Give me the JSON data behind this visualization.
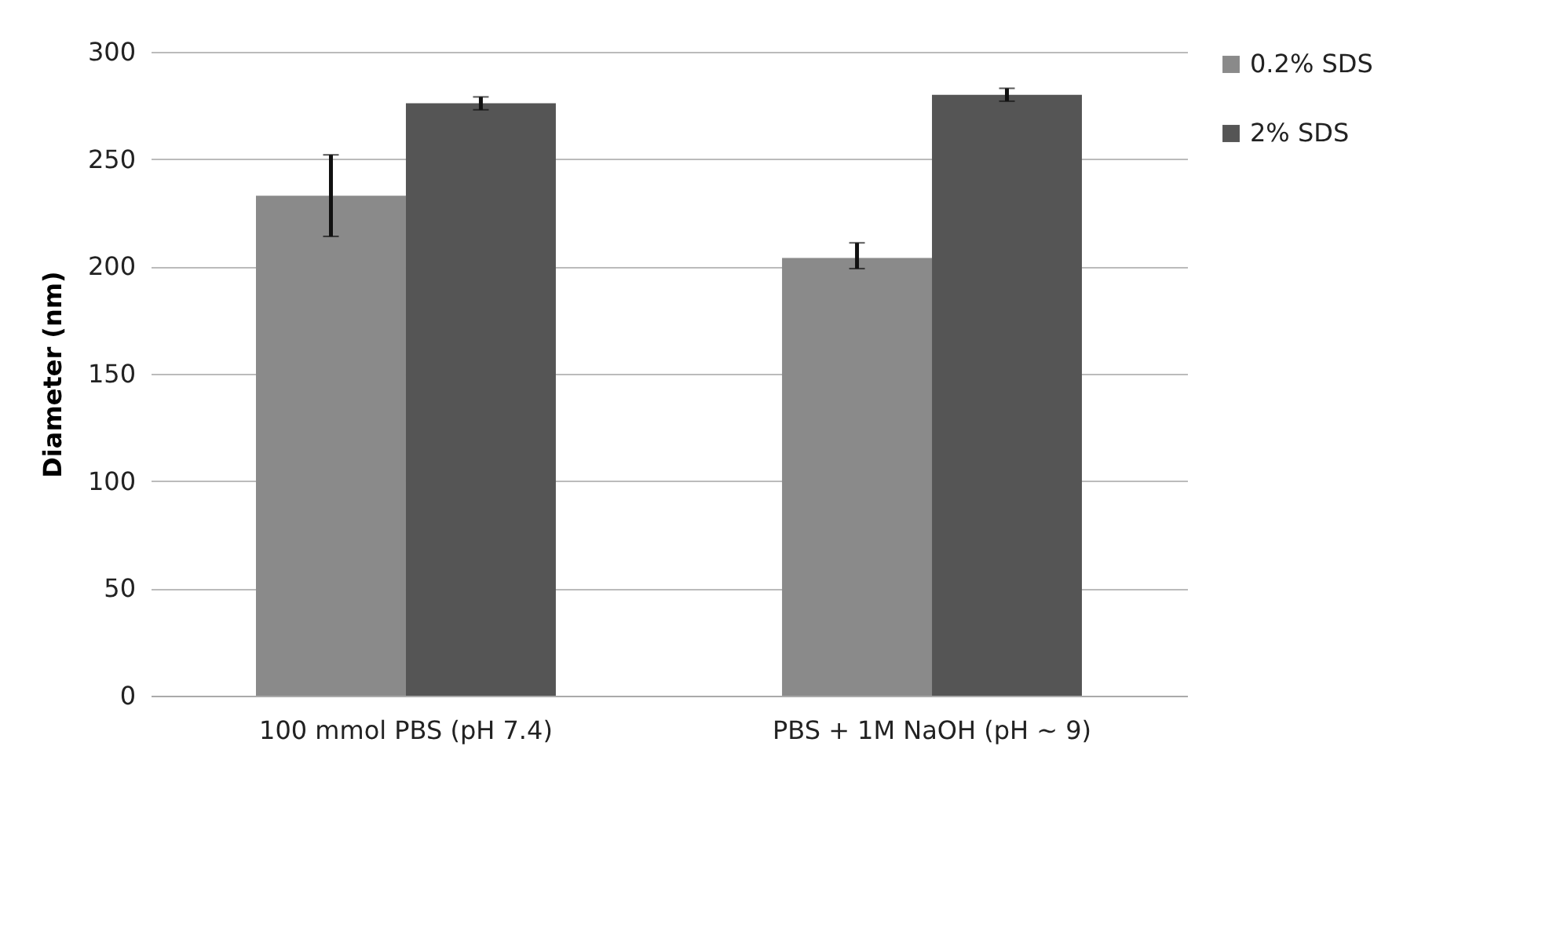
{
  "chart_data": {
    "type": "bar",
    "ylabel": "Diameter (nm)",
    "categories": [
      "100 mmol PBS (pH 7.4)",
      "PBS + 1M NaOH (pH ~ 9)"
    ],
    "series": [
      {
        "name": "0.2% SDS",
        "color": "#8a8a8a",
        "values": [
          233,
          204
        ],
        "errors": [
          [
            214,
            252
          ],
          [
            199,
            211
          ]
        ]
      },
      {
        "name": "2% SDS",
        "color": "#555555",
        "values": [
          276,
          280
        ],
        "errors": [
          [
            273,
            279
          ],
          [
            277,
            283
          ]
        ]
      }
    ],
    "ylim": [
      0,
      300
    ],
    "yticks": [
      0,
      50,
      100,
      150,
      200,
      250,
      300
    ],
    "grid": "y",
    "legend": "right"
  }
}
